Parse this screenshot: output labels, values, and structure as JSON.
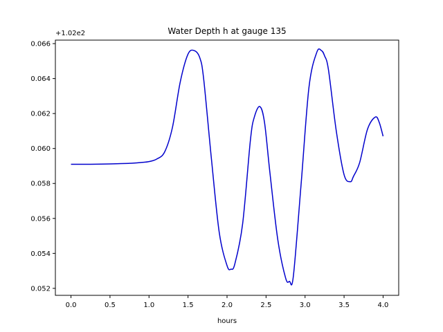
{
  "chart_data": {
    "type": "line",
    "title": "Water Depth h at gauge 135",
    "xlabel": "hours",
    "ylabel": "",
    "offset_label": "+1.02e2",
    "xlim": [
      -0.2,
      4.2
    ],
    "ylim": [
      0.0516,
      0.0662
    ],
    "xticks": [
      0.0,
      0.5,
      1.0,
      1.5,
      2.0,
      2.5,
      3.0,
      3.5,
      4.0
    ],
    "xtick_labels": [
      "0.0",
      "0.5",
      "1.0",
      "1.5",
      "2.0",
      "2.5",
      "3.0",
      "3.5",
      "4.0"
    ],
    "yticks": [
      0.052,
      0.054,
      0.056,
      0.058,
      0.06,
      0.062,
      0.064,
      0.066
    ],
    "ytick_labels": [
      "0.052",
      "0.054",
      "0.056",
      "0.058",
      "0.060",
      "0.062",
      "0.064",
      "0.066"
    ],
    "grid": false,
    "series": [
      {
        "color": "#0000cc",
        "x": [
          0.0,
          0.25,
          0.5,
          0.75,
          0.9,
          1.0,
          1.1,
          1.2,
          1.3,
          1.4,
          1.5,
          1.58,
          1.65,
          1.7,
          1.8,
          1.9,
          2.0,
          2.05,
          2.1,
          2.2,
          2.3,
          2.35,
          2.42,
          2.48,
          2.55,
          2.65,
          2.75,
          2.8,
          2.85,
          2.95,
          3.05,
          3.15,
          3.21,
          3.25,
          3.3,
          3.4,
          3.5,
          3.58,
          3.62,
          3.7,
          3.8,
          3.9,
          3.95,
          4.0
        ],
        "y": [
          0.0591,
          0.0591,
          0.05912,
          0.05915,
          0.0592,
          0.05925,
          0.0594,
          0.0598,
          0.0612,
          0.0638,
          0.0654,
          0.0656,
          0.0652,
          0.064,
          0.0594,
          0.0552,
          0.0533,
          0.0531,
          0.0534,
          0.0557,
          0.0605,
          0.0618,
          0.0624,
          0.0615,
          0.0586,
          0.0548,
          0.0526,
          0.0524,
          0.0527,
          0.058,
          0.0635,
          0.0655,
          0.0656,
          0.0653,
          0.0645,
          0.061,
          0.0585,
          0.0581,
          0.0584,
          0.0592,
          0.0611,
          0.0618,
          0.0615,
          0.0607
        ]
      }
    ]
  }
}
